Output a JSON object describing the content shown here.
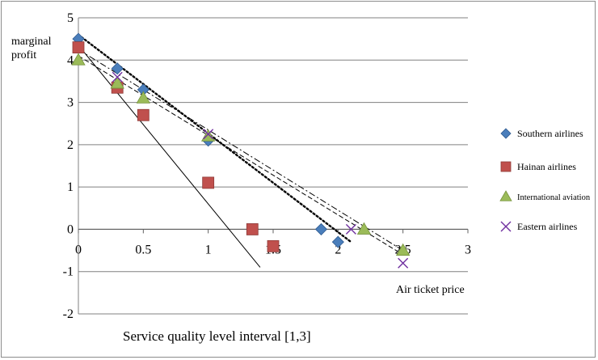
{
  "chart_data": {
    "type": "scatter",
    "title": "",
    "ylabel_line1": "marginal",
    "ylabel_line2": "profit",
    "xlabel": "Service quality level interval [1,3]",
    "annotation": "Air ticket price",
    "xlim": [
      0,
      3
    ],
    "ylim": [
      -2,
      5
    ],
    "x_ticks": [
      "0",
      "0.5",
      "1",
      "1.5",
      "2",
      "2.5",
      "3"
    ],
    "y_ticks": [
      "5",
      "4",
      "3",
      "2",
      "1",
      "0",
      "-1",
      "-2"
    ],
    "grid": "horizontal",
    "legend_position": "right",
    "series": [
      {
        "name": "Southern airlines",
        "marker": "diamond",
        "color": "#4a7ebb",
        "x": [
          0,
          0.3,
          0.5,
          1,
          1.87,
          2
        ],
        "y": [
          4.5,
          3.8,
          3.3,
          2.1,
          0,
          -0.3
        ],
        "trend": {
          "style": "dotted",
          "x": [
            0,
            2.1
          ],
          "y": [
            4.6,
            -0.3
          ]
        }
      },
      {
        "name": "Hainan airlines",
        "marker": "square",
        "color": "#c0504d",
        "x": [
          0,
          0.3,
          0.5,
          1,
          1.34,
          1.5
        ],
        "y": [
          4.3,
          3.35,
          2.7,
          1.1,
          0,
          -0.4
        ],
        "trend": {
          "style": "solid",
          "x": [
            0,
            1.4
          ],
          "y": [
            4.35,
            -0.9
          ]
        }
      },
      {
        "name": "International aviation",
        "marker": "triangle",
        "color": "#9bbb59",
        "x": [
          0,
          0.3,
          0.5,
          1,
          2.2,
          2.5
        ],
        "y": [
          4,
          3.45,
          3.1,
          2.2,
          0,
          -0.5
        ],
        "trend": {
          "style": "dashed",
          "x": [
            0,
            2.5
          ],
          "y": [
            4.1,
            -0.6
          ]
        }
      },
      {
        "name": "Eastern airlines",
        "marker": "x",
        "color": "#7030a0",
        "x": [
          0.3,
          1,
          2.1,
          2.5
        ],
        "y": [
          3.6,
          2.25,
          0,
          -0.8
        ],
        "trend": {
          "style": "dashdot",
          "x": [
            0,
            2.5
          ],
          "y": [
            4.25,
            -0.5
          ]
        }
      }
    ]
  }
}
